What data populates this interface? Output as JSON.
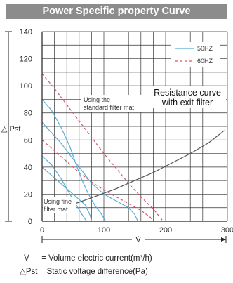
{
  "title": "Power Specific property Curve",
  "chart_data": {
    "type": "line",
    "xlim": [
      0,
      300
    ],
    "ylim": [
      0,
      140
    ],
    "x_ticks": [
      0,
      100,
      200,
      300
    ],
    "y_ticks": [
      0,
      20,
      40,
      60,
      80,
      100,
      120,
      140
    ],
    "xlabel": "V̇",
    "ylabel": "△ Pst",
    "grid": true,
    "legend_position": "top-right",
    "series": [
      {
        "name": "50HZ",
        "color": "#5aaed8",
        "dash": "solid",
        "points": [
          [
            0,
            90
          ],
          [
            15,
            82
          ],
          [
            30,
            70
          ],
          [
            45,
            55
          ],
          [
            55,
            42
          ],
          [
            65,
            30
          ],
          [
            75,
            20
          ],
          [
            85,
            12
          ],
          [
            95,
            6
          ],
          [
            103,
            0
          ]
        ]
      },
      {
        "name": "60HZ",
        "color": "#d2566a",
        "dash": "dashed",
        "points": [
          [
            0,
            109
          ],
          [
            20,
            98
          ],
          [
            40,
            86
          ],
          [
            60,
            74
          ],
          [
            80,
            62
          ],
          [
            100,
            50
          ],
          [
            120,
            39
          ],
          [
            140,
            28
          ],
          [
            160,
            18
          ],
          [
            180,
            9
          ],
          [
            196,
            0
          ]
        ]
      },
      {
        "name": "",
        "color": "#5aaed8",
        "dash": "solid",
        "points": [
          [
            0,
            48
          ],
          [
            15,
            42
          ],
          [
            30,
            32
          ],
          [
            45,
            20
          ],
          [
            58,
            10
          ],
          [
            66,
            4
          ],
          [
            72,
            0
          ]
        ]
      },
      {
        "name": "",
        "color": "#d2566a",
        "dash": "dashed",
        "points": [
          [
            0,
            60
          ],
          [
            20,
            52
          ],
          [
            40,
            44
          ],
          [
            60,
            36
          ],
          [
            80,
            29
          ],
          [
            100,
            23
          ],
          [
            120,
            18
          ],
          [
            140,
            13
          ],
          [
            160,
            8
          ],
          [
            175,
            3
          ],
          [
            180,
            0
          ]
        ]
      },
      {
        "name": "",
        "color": "#5aaed8",
        "dash": "solid",
        "points": [
          [
            0,
            73
          ],
          [
            30,
            58
          ],
          [
            60,
            40
          ],
          [
            80,
            28
          ],
          [
            100,
            20
          ],
          [
            120,
            15
          ],
          [
            140,
            10
          ],
          [
            150,
            5
          ],
          [
            155,
            0
          ]
        ]
      },
      {
        "name": "",
        "color": "#5aaed8",
        "dash": "solid",
        "points": [
          [
            0,
            40
          ],
          [
            30,
            28
          ],
          [
            60,
            16
          ],
          [
            70,
            12
          ],
          [
            78,
            4
          ],
          [
            80,
            0
          ]
        ]
      },
      {
        "name": "",
        "color": "#555555",
        "dash": "solid",
        "points": [
          [
            30,
            10
          ],
          [
            60,
            14
          ],
          [
            90,
            19
          ],
          [
            120,
            24
          ],
          [
            150,
            30
          ],
          [
            180,
            36
          ],
          [
            210,
            43
          ],
          [
            240,
            50
          ],
          [
            270,
            58
          ],
          [
            295,
            67
          ]
        ]
      }
    ],
    "annotations": {
      "standard_mat": [
        "Using the",
        "standard filter mat"
      ],
      "fine_mat": [
        "Using fine",
        "filter mat"
      ],
      "resistance": [
        "Resistance curve",
        "with exit filter"
      ]
    }
  },
  "footnotes": {
    "symbol_v": "V̇",
    "def_v": "= Volume electric current(m³/h)",
    "def_pst": "△Pst = Static voltage difference(Pa)"
  }
}
